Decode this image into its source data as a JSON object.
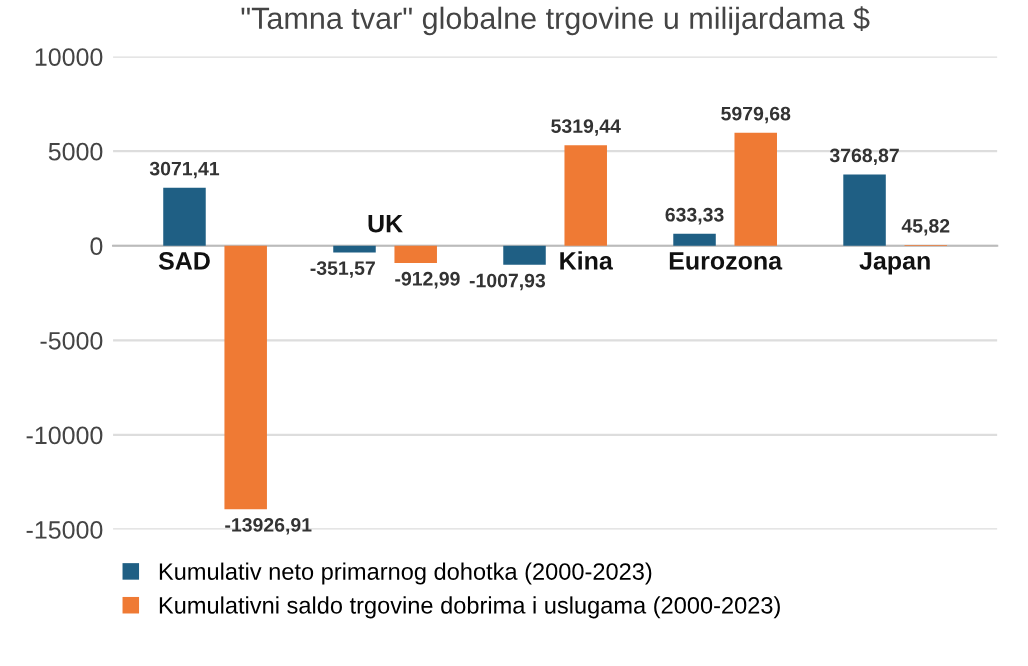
{
  "chart_data": {
    "type": "bar",
    "title": "\"Tamna tvar\" globalne trgovine u milijardama $",
    "categories": [
      "SAD",
      "UK",
      "Kina",
      "Eurozona",
      "Japan"
    ],
    "series": [
      {
        "name": "Kumulativ neto primarnog dohotka (2000-2023)",
        "color": "#1f5f84",
        "values": [
          3071.41,
          -351.57,
          -1007.93,
          633.33,
          3768.87
        ],
        "value_labels": [
          "3071,41",
          "-351,57",
          "-1007,93",
          "633,33",
          "3768,87"
        ]
      },
      {
        "name": "Kumulativni saldo trgovine dobrima i uslugama (2000-2023)",
        "color": "#ef7a34",
        "values": [
          -13926.91,
          -912.99,
          5319.44,
          5979.68,
          45.82
        ],
        "value_labels": [
          "-13926,91",
          "-912,99",
          "5319,44",
          "5979,68",
          "45,82"
        ]
      }
    ],
    "ylim": [
      -15000,
      10000
    ],
    "yticks": [
      -15000,
      -10000,
      -5000,
      0,
      5000,
      10000
    ],
    "grid": "y",
    "legend": "bottom"
  }
}
